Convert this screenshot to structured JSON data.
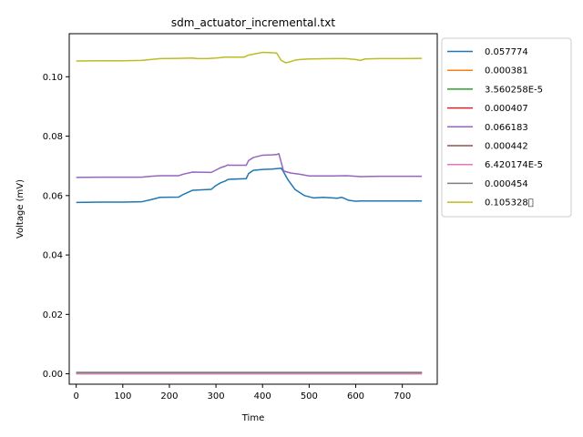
{
  "chart_data": {
    "type": "line",
    "title": "sdm_actuator_incremental.txt",
    "xlabel": "Time",
    "ylabel": "Voltage (mV)",
    "xlim": [
      -15,
      775
    ],
    "ylim": [
      -0.0035,
      0.1145
    ],
    "xticks": [
      0,
      100,
      200,
      300,
      400,
      500,
      600,
      700
    ],
    "yticks": [
      0.0,
      0.02,
      0.04,
      0.06,
      0.08,
      0.1
    ],
    "ytick_labels": [
      "0.00",
      "0.02",
      "0.04",
      "0.06",
      "0.08",
      "0.10"
    ],
    "grid": false,
    "legend_position": "outside-right",
    "series": [
      {
        "name": "0.057774",
        "color": "#1f77b4",
        "x": [
          0,
          50,
          100,
          140,
          160,
          180,
          220,
          230,
          250,
          290,
          300,
          310,
          320,
          325,
          330,
          365,
          370,
          380,
          400,
          420,
          440,
          445,
          455,
          470,
          490,
          510,
          530,
          550,
          560,
          570,
          575,
          585,
          600,
          610,
          620,
          660,
          700,
          742
        ],
        "y": [
          0.0577,
          0.0578,
          0.0578,
          0.0579,
          0.0586,
          0.0594,
          0.0595,
          0.0604,
          0.0618,
          0.0621,
          0.0634,
          0.0643,
          0.0649,
          0.0654,
          0.0655,
          0.0657,
          0.0674,
          0.0685,
          0.0688,
          0.0689,
          0.0692,
          0.068,
          0.0652,
          0.062,
          0.06,
          0.0592,
          0.0594,
          0.0592,
          0.0591,
          0.0594,
          0.0591,
          0.0584,
          0.0581,
          0.0582,
          0.0582,
          0.0582,
          0.0582,
          0.0582
        ]
      },
      {
        "name": "0.000381",
        "color": "#ff7f0e",
        "x": [
          0,
          742
        ],
        "y": [
          0.000381,
          0.000381
        ]
      },
      {
        "name": "3.560258E-5",
        "color": "#2ca02c",
        "x": [
          0,
          742
        ],
        "y": [
          3.56e-05,
          3.56e-05
        ]
      },
      {
        "name": "0.000407",
        "color": "#d62728",
        "x": [
          0,
          742
        ],
        "y": [
          0.000407,
          0.000407
        ]
      },
      {
        "name": "0.066183",
        "color": "#9467bd",
        "x": [
          0,
          50,
          100,
          140,
          160,
          180,
          220,
          230,
          250,
          290,
          300,
          310,
          320,
          325,
          330,
          365,
          370,
          380,
          400,
          420,
          430,
          435,
          445,
          460,
          480,
          500,
          550,
          580,
          600,
          610,
          650,
          700,
          742
        ],
        "y": [
          0.0661,
          0.0662,
          0.0662,
          0.0662,
          0.0665,
          0.0667,
          0.0667,
          0.0672,
          0.0679,
          0.0678,
          0.0686,
          0.0694,
          0.0699,
          0.0703,
          0.0702,
          0.0702,
          0.0718,
          0.0728,
          0.0736,
          0.0737,
          0.0738,
          0.0741,
          0.0683,
          0.0676,
          0.0672,
          0.0666,
          0.0666,
          0.0667,
          0.0665,
          0.0664,
          0.0665,
          0.0665,
          0.0665
        ]
      },
      {
        "name": "0.000442",
        "color": "#8c564b",
        "x": [
          0,
          742
        ],
        "y": [
          0.000442,
          0.000442
        ]
      },
      {
        "name": "6.420174E-5",
        "color": "#e377c2",
        "x": [
          0,
          742
        ],
        "y": [
          6.42e-05,
          6.42e-05
        ]
      },
      {
        "name": "0.000454",
        "color": "#7f7f7f",
        "x": [
          0,
          742
        ],
        "y": [
          0.000454,
          0.000454
        ]
      },
      {
        "name": "0.105328\u0000",
        "color": "#bcbd22",
        "x": [
          0,
          50,
          100,
          140,
          160,
          180,
          220,
          250,
          260,
          280,
          300,
          320,
          330,
          340,
          360,
          370,
          380,
          390,
          400,
          420,
          430,
          435,
          440,
          450,
          460,
          470,
          480,
          500,
          550,
          580,
          600,
          610,
          620,
          650,
          700,
          742
        ],
        "y": [
          0.1053,
          0.1054,
          0.1054,
          0.1055,
          0.1058,
          0.1061,
          0.1062,
          0.1063,
          0.1061,
          0.1061,
          0.1063,
          0.1066,
          0.1066,
          0.1066,
          0.1066,
          0.1073,
          0.1076,
          0.1079,
          0.1082,
          0.1081,
          0.108,
          0.1068,
          0.1055,
          0.1047,
          0.1051,
          0.1056,
          0.1058,
          0.106,
          0.1061,
          0.1061,
          0.1058,
          0.1055,
          0.106,
          0.1061,
          0.1061,
          0.1062
        ]
      }
    ]
  }
}
